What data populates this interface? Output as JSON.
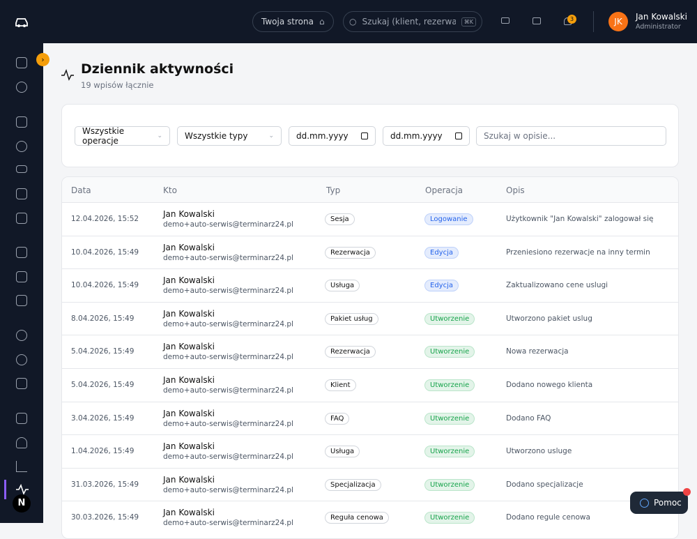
{
  "topbar": {
    "site_button": "Twoja strona",
    "search_placeholder": "Szukaj (klient, rezerwacja...",
    "search_shortcut": "⌘K",
    "notification_count": "3",
    "avatar_initials": "JK",
    "user_name": "Jan Kowalski",
    "user_role": "Administrator"
  },
  "header": {
    "title": "Dziennik aktywności",
    "subtitle": "19 wpisów łącznie"
  },
  "filters": {
    "operation_select": "Wszystkie operacje",
    "type_select": "Wszystkie typy",
    "date_from": "dd.mm.yyyy",
    "date_to": "dd.mm.yyyy",
    "search_placeholder": "Szukaj w opisie..."
  },
  "table": {
    "columns": [
      "Data",
      "Kto",
      "Typ",
      "Operacja",
      "Opis"
    ],
    "rows": [
      {
        "date": "12.04.2026, 15:52",
        "name": "Jan Kowalski",
        "email": "demo+auto-serwis@terminarz24.pl",
        "type": "Sesja",
        "operation": "Logowanie",
        "operation_color": "#2563eb",
        "description": "Użytkownik \"Jan Kowalski\" zalogował się"
      },
      {
        "date": "10.04.2026, 15:49",
        "name": "Jan Kowalski",
        "email": "demo+auto-serwis@terminarz24.pl",
        "type": "Rezerwacja",
        "operation": "Edycja",
        "operation_color": "#2563eb",
        "description": "Przeniesiono rezerwacje na inny termin"
      },
      {
        "date": "10.04.2026, 15:49",
        "name": "Jan Kowalski",
        "email": "demo+auto-serwis@terminarz24.pl",
        "type": "Usługa",
        "operation": "Edycja",
        "operation_color": "#2563eb",
        "description": "Zaktualizowano cene uslugi"
      },
      {
        "date": "8.04.2026, 15:49",
        "name": "Jan Kowalski",
        "email": "demo+auto-serwis@terminarz24.pl",
        "type": "Pakiet usług",
        "operation": "Utworzenie",
        "operation_color": "#16a34a",
        "description": "Utworzono pakiet uslug"
      },
      {
        "date": "5.04.2026, 15:49",
        "name": "Jan Kowalski",
        "email": "demo+auto-serwis@terminarz24.pl",
        "type": "Rezerwacja",
        "operation": "Utworzenie",
        "operation_color": "#16a34a",
        "description": "Nowa rezerwacja"
      },
      {
        "date": "5.04.2026, 15:49",
        "name": "Jan Kowalski",
        "email": "demo+auto-serwis@terminarz24.pl",
        "type": "Klient",
        "operation": "Utworzenie",
        "operation_color": "#16a34a",
        "description": "Dodano nowego klienta"
      },
      {
        "date": "3.04.2026, 15:49",
        "name": "Jan Kowalski",
        "email": "demo+auto-serwis@terminarz24.pl",
        "type": "FAQ",
        "operation": "Utworzenie",
        "operation_color": "#16a34a",
        "description": "Dodano FAQ"
      },
      {
        "date": "1.04.2026, 15:49",
        "name": "Jan Kowalski",
        "email": "demo+auto-serwis@terminarz24.pl",
        "type": "Usługa",
        "operation": "Utworzenie",
        "operation_color": "#16a34a",
        "description": "Utworzono usluge"
      },
      {
        "date": "31.03.2026, 15:49",
        "name": "Jan Kowalski",
        "email": "demo+auto-serwis@terminarz24.pl",
        "type": "Specjalizacja",
        "operation": "Utworzenie",
        "operation_color": "#16a34a",
        "description": "Dodano specjalizacje"
      },
      {
        "date": "30.03.2026, 15:49",
        "name": "Jan Kowalski",
        "email": "demo+auto-serwis@terminarz24.pl",
        "type": "Reguła cenowa",
        "operation": "Utworzenie",
        "operation_color": "#16a34a",
        "description": "Dodano regule cenowa"
      }
    ]
  },
  "help_button": "Pomoc",
  "sidebar_badge": "N"
}
